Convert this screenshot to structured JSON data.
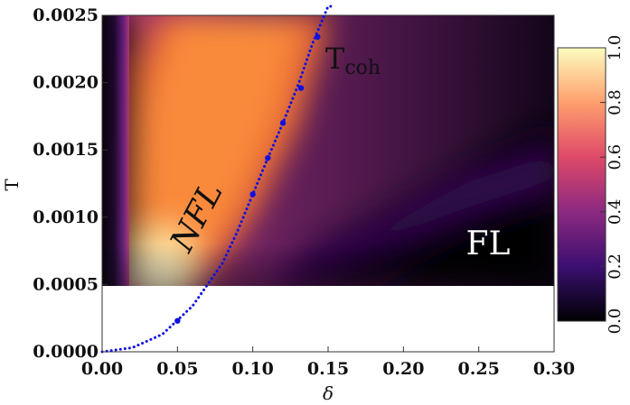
{
  "chart_data": {
    "type": "heatmap",
    "title": "",
    "xlabel": "δ",
    "ylabel": "T",
    "xlim": [
      0.0,
      0.3
    ],
    "ylim": [
      0.0,
      0.0025
    ],
    "heatmap_ylim": [
      0.0005,
      0.0025
    ],
    "x_ticks": [
      "0.00",
      "0.05",
      "0.10",
      "0.15",
      "0.20",
      "0.25",
      "0.30"
    ],
    "y_ticks": [
      "0.0000",
      "0.0005",
      "0.0010",
      "0.0015",
      "0.0020",
      "0.0025"
    ],
    "colorbar": {
      "range": [
        0.0,
        1.0
      ],
      "ticks": [
        "0.0",
        "0.2",
        "0.4",
        "0.6",
        "0.8",
        "1.0"
      ],
      "colormap": [
        "#000004",
        "#3b0f70",
        "#8c2981",
        "#de4968",
        "#fe9f6d",
        "#fcfdbf"
      ]
    },
    "series": [
      {
        "type": "scatter",
        "color": "#1010e0",
        "points": [
          {
            "x": 0.05,
            "y": 0.00023
          },
          {
            "x": 0.1,
            "y": 0.00117
          },
          {
            "x": 0.11,
            "y": 0.00144
          },
          {
            "x": 0.12,
            "y": 0.0017
          },
          {
            "x": 0.132,
            "y": 0.00196
          },
          {
            "x": 0.143,
            "y": 0.00234
          }
        ]
      },
      {
        "type": "line",
        "style": "dotted",
        "color": "#1010e0",
        "x": [
          0.0,
          0.02,
          0.04,
          0.06,
          0.07,
          0.08,
          0.09,
          0.1,
          0.11,
          0.12,
          0.13,
          0.14,
          0.15,
          0.153
        ],
        "y": [
          0.0,
          3e-05,
          0.00013,
          0.00034,
          0.0005,
          0.00066,
          0.0009,
          0.00117,
          0.00144,
          0.0017,
          0.00198,
          0.0023,
          0.00258,
          0.00265
        ]
      }
    ],
    "annotations": [
      {
        "text": "NFL",
        "color": "#111111"
      },
      {
        "text": "FL",
        "color": "#ffffff"
      },
      {
        "base": "T",
        "sub": "coh",
        "color": "#111111"
      }
    ]
  }
}
